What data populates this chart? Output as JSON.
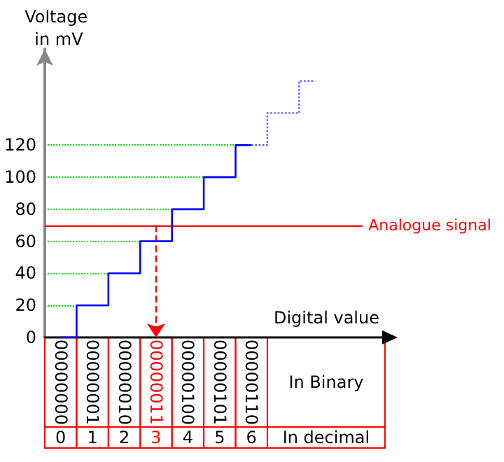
{
  "chart_data": {
    "type": "step",
    "xlabel": "Digital value",
    "ylabel": "Voltage in mV",
    "categories": [
      "00000000",
      "00000001",
      "00000010",
      "00000011",
      "00000100",
      "00000101",
      "00000110",
      null,
      null
    ],
    "series": [
      {
        "color": "#0000ff",
        "values": [
          0,
          20,
          40,
          60,
          80,
          100,
          120,
          null,
          null
        ]
      },
      {
        "color": "#6666ff",
        "line_style": "dotted",
        "values": [
          null,
          null,
          null,
          null,
          null,
          null,
          120,
          140,
          160
        ]
      }
    ],
    "ylim": [
      0,
      180
    ],
    "yticks": [
      0,
      20,
      40,
      60,
      80,
      100,
      120
    ],
    "ref_lines": [
      {
        "axis": "y",
        "value": 70,
        "label": "Analogue signal",
        "color": "#ff0000"
      },
      {
        "axis": "y",
        "value": 20,
        "color": "#00dd00",
        "line_style": "dotted"
      },
      {
        "axis": "y",
        "value": 40,
        "color": "#00dd00",
        "line_style": "dotted"
      },
      {
        "axis": "y",
        "value": 60,
        "color": "#00dd00",
        "line_style": "dotted"
      },
      {
        "axis": "y",
        "value": 80,
        "color": "#00dd00",
        "line_style": "dotted"
      },
      {
        "axis": "y",
        "value": 100,
        "color": "#00dd00",
        "line_style": "dotted"
      },
      {
        "axis": "y",
        "value": 120,
        "color": "#00dd00",
        "line_style": "dotted"
      }
    ],
    "annotations": [
      "In Binary",
      "In decimal",
      "0",
      "1",
      "2",
      "3",
      "4",
      "5",
      "6"
    ]
  }
}
